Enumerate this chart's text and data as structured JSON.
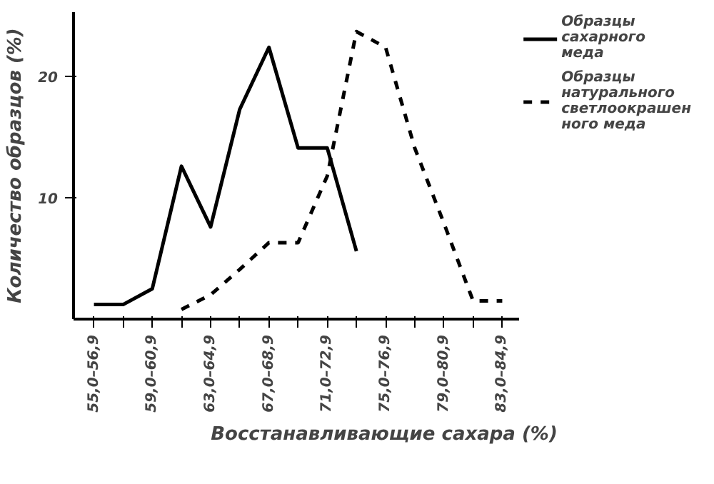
{
  "chart_data": {
    "type": "line",
    "xlabel": "Восстанавливающие сахара (%)",
    "ylabel": "Количество образцов (%)",
    "categories": [
      "55,0–56,9",
      null,
      "59,0–60,9",
      null,
      "63,0–64,9",
      null,
      "67,0–68,9",
      null,
      "71,0–72,9",
      null,
      "75,0–76,9",
      null,
      "79,0–80,9",
      null,
      "83,0–84,9"
    ],
    "series": [
      {
        "name": "Образцы сахарного меда",
        "color": "#000000",
        "line_style": "solid",
        "values": [
          1.2,
          1.2,
          2.5,
          12.6,
          7.6,
          17.3,
          22.4,
          14.1,
          14.1,
          5.6,
          null,
          null,
          null,
          null,
          null
        ]
      },
      {
        "name": "Образцы натурального светлоокрашенного меда",
        "color": "#000000",
        "line_style": "dashed",
        "values": [
          null,
          null,
          null,
          0.8,
          2.0,
          4.1,
          6.3,
          6.3,
          11.8,
          23.7,
          22.4,
          14.1,
          7.9,
          1.5,
          1.5
        ]
      }
    ],
    "ylim": [
      0,
      25.3
    ],
    "yticks": [
      10,
      20
    ],
    "grid": false,
    "legend": "top right",
    "marker": "none"
  }
}
